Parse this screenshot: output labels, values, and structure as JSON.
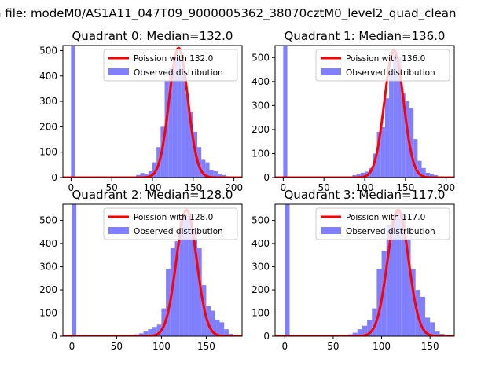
{
  "figure_title": "n file: modeM0/AS1A11_047T09_9000005362_38070cztM0_level2_quad_clean",
  "colors": {
    "poisson": "#ff0000",
    "observed": "#7f7fff",
    "axes": "#000000"
  },
  "chart_data": [
    {
      "type": "bar",
      "title": "Quadrant 0: Median=132.0",
      "xlim": [
        -10,
        210
      ],
      "ylim": [
        0,
        520
      ],
      "xticks": [
        0,
        50,
        100,
        150,
        200
      ],
      "yticks": [
        0,
        100,
        200,
        300,
        400,
        500
      ],
      "legend": {
        "placement": "top-right",
        "entries": [
          "Poission with 132.0",
          "Observed distribution"
        ]
      },
      "poisson_peak": 510,
      "poisson_x": [
        96,
        172
      ],
      "series": [
        {
          "name": "Observed distribution",
          "bins": [
            [
              0,
              5,
              520
            ],
            [
              80,
              85,
              10
            ],
            [
              85,
              90,
              18
            ],
            [
              90,
              95,
              15
            ],
            [
              95,
              100,
              25
            ],
            [
              100,
              105,
              60
            ],
            [
              105,
              110,
              120
            ],
            [
              110,
              115,
              200
            ],
            [
              115,
              120,
              380
            ],
            [
              120,
              125,
              430
            ],
            [
              125,
              130,
              470
            ],
            [
              130,
              135,
              470
            ],
            [
              135,
              140,
              430
            ],
            [
              140,
              145,
              330
            ],
            [
              145,
              150,
              260
            ],
            [
              150,
              155,
              180
            ],
            [
              155,
              160,
              120
            ],
            [
              160,
              165,
              70
            ],
            [
              165,
              170,
              60
            ],
            [
              170,
              175,
              30
            ],
            [
              175,
              180,
              25
            ],
            [
              180,
              185,
              15
            ],
            [
              185,
              190,
              10
            ],
            [
              190,
              195,
              5
            ]
          ]
        },
        {
          "name": "Poission with 132.0",
          "mean": 132.0,
          "peak": 510
        }
      ]
    },
    {
      "type": "bar",
      "title": "Quadrant 1: Median=136.0",
      "xlim": [
        -10,
        210
      ],
      "ylim": [
        0,
        550
      ],
      "xticks": [
        0,
        50,
        100,
        150,
        200
      ],
      "yticks": [
        0,
        100,
        200,
        300,
        400,
        500
      ],
      "legend": {
        "placement": "top-right",
        "entries": [
          "Poission with 136.0",
          "Observed distribution"
        ]
      },
      "poisson_peak": 530,
      "poisson_x": [
        98,
        176
      ],
      "series": [
        {
          "name": "Observed distribution",
          "bins": [
            [
              0,
              5,
              550
            ],
            [
              80,
              85,
              5
            ],
            [
              85,
              90,
              10
            ],
            [
              90,
              95,
              15
            ],
            [
              95,
              100,
              20
            ],
            [
              100,
              105,
              25
            ],
            [
              105,
              110,
              40
            ],
            [
              110,
              115,
              100
            ],
            [
              115,
              120,
              190
            ],
            [
              120,
              125,
              210
            ],
            [
              125,
              130,
              330
            ],
            [
              130,
              135,
              440
            ],
            [
              135,
              140,
              520
            ],
            [
              140,
              145,
              500
            ],
            [
              145,
              150,
              350
            ],
            [
              150,
              155,
              320
            ],
            [
              155,
              160,
              290
            ],
            [
              160,
              165,
              160
            ],
            [
              165,
              170,
              70
            ],
            [
              170,
              175,
              40
            ],
            [
              175,
              180,
              20
            ],
            [
              180,
              185,
              15
            ],
            [
              185,
              190,
              10
            ]
          ]
        },
        {
          "name": "Poission with 136.0",
          "mean": 136.0,
          "peak": 530
        }
      ]
    },
    {
      "type": "bar",
      "title": "Quadrant 2: Median=128.0",
      "xlim": [
        -10,
        190
      ],
      "ylim": [
        0,
        570
      ],
      "xticks": [
        0,
        50,
        100,
        150
      ],
      "yticks": [
        0,
        100,
        200,
        300,
        400,
        500
      ],
      "legend": {
        "placement": "top-right",
        "entries": [
          "Poission with 128.0",
          "Observed distribution"
        ]
      },
      "poisson_peak": 545,
      "poisson_x": [
        90,
        172
      ],
      "series": [
        {
          "name": "Observed distribution",
          "bins": [
            [
              0,
              5,
              570
            ],
            [
              60,
              65,
              3
            ],
            [
              65,
              70,
              5
            ],
            [
              70,
              75,
              8
            ],
            [
              75,
              80,
              12
            ],
            [
              80,
              85,
              20
            ],
            [
              85,
              90,
              30
            ],
            [
              90,
              95,
              40
            ],
            [
              95,
              100,
              50
            ],
            [
              100,
              105,
              120
            ],
            [
              105,
              110,
              290
            ],
            [
              110,
              115,
              380
            ],
            [
              115,
              120,
              410
            ],
            [
              120,
              125,
              500
            ],
            [
              125,
              130,
              530
            ],
            [
              130,
              135,
              520
            ],
            [
              135,
              140,
              460
            ],
            [
              140,
              145,
              380
            ],
            [
              145,
              150,
              220
            ],
            [
              150,
              155,
              130
            ],
            [
              155,
              160,
              110
            ],
            [
              160,
              165,
              70
            ],
            [
              165,
              170,
              60
            ],
            [
              170,
              175,
              30
            ],
            [
              175,
              180,
              10
            ],
            [
              180,
              185,
              5
            ]
          ]
        },
        {
          "name": "Poission with 128.0",
          "mean": 128.0,
          "peak": 545
        }
      ]
    },
    {
      "type": "bar",
      "title": "Quadrant 3: Median=117.0",
      "xlim": [
        -10,
        175
      ],
      "ylim": [
        0,
        570
      ],
      "xticks": [
        0,
        50,
        100,
        150
      ],
      "yticks": [
        0,
        100,
        200,
        300,
        400,
        500
      ],
      "legend": {
        "placement": "top-right",
        "entries": [
          "Poission with 117.0",
          "Observed distribution"
        ]
      },
      "poisson_peak": 545,
      "poisson_x": [
        80,
        160
      ],
      "series": [
        {
          "name": "Observed distribution",
          "bins": [
            [
              0,
              5,
              570
            ],
            [
              60,
              65,
              5
            ],
            [
              65,
              70,
              8
            ],
            [
              70,
              75,
              15
            ],
            [
              75,
              80,
              30
            ],
            [
              80,
              85,
              45
            ],
            [
              85,
              90,
              70
            ],
            [
              90,
              95,
              120
            ],
            [
              95,
              100,
              290
            ],
            [
              100,
              105,
              370
            ],
            [
              105,
              110,
              480
            ],
            [
              110,
              115,
              510
            ],
            [
              115,
              120,
              540
            ],
            [
              120,
              125,
              530
            ],
            [
              125,
              130,
              420
            ],
            [
              130,
              135,
              290
            ],
            [
              135,
              140,
              200
            ],
            [
              140,
              145,
              170
            ],
            [
              145,
              150,
              80
            ],
            [
              150,
              155,
              60
            ],
            [
              155,
              160,
              20
            ],
            [
              160,
              165,
              10
            ]
          ]
        },
        {
          "name": "Poission with 117.0",
          "mean": 117.0,
          "peak": 545
        }
      ]
    }
  ]
}
